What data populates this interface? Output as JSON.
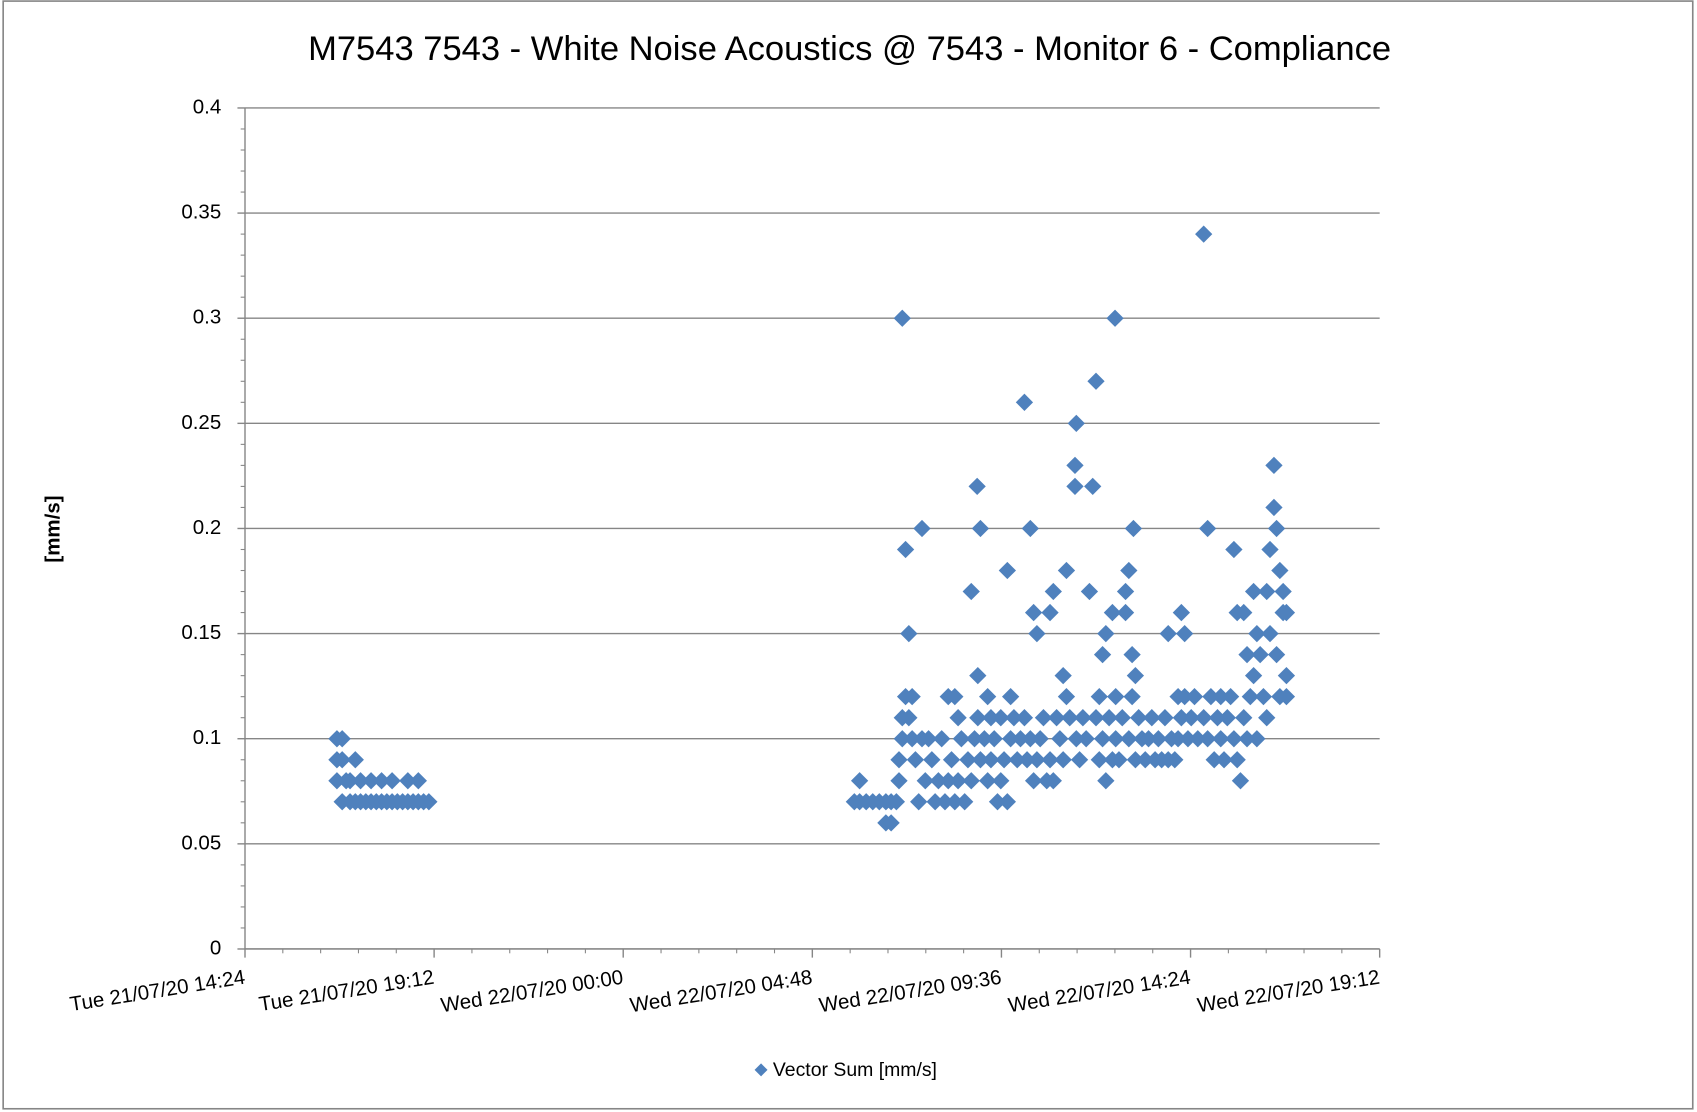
{
  "chart_data": {
    "type": "scatter",
    "title": "M7543 7543 - White Noise Acoustics @ 7543 - Monitor 6  - Compliance",
    "ylabel": "[mm/s]",
    "ylim": [
      0,
      0.4
    ],
    "yticks": [
      0,
      0.05,
      0.1,
      0.15,
      0.2,
      0.25,
      0.3,
      0.35,
      0.4
    ],
    "xlim": [
      "Tue 21/07/20 14:24",
      "Wed 22/07/20 19:12"
    ],
    "xticks": [
      "Tue 21/07/20 14:24",
      "Tue 21/07/20 19:12",
      "Wed 22/07/20 00:00",
      "Wed 22/07/20 04:48",
      "Wed 22/07/20 09:36",
      "Wed 22/07/20 14:24",
      "Wed 22/07/20 19:12"
    ],
    "grid": true,
    "legend": "bottom",
    "series": [
      {
        "name": "Vector Sum [mm/s]",
        "color": "#4f81bd",
        "x": [
          "Tue 21/07/20 16:44",
          "Tue 21/07/20 16:44",
          "Tue 21/07/20 16:44",
          "Tue 21/07/20 16:52",
          "Tue 21/07/20 16:52",
          "Tue 21/07/20 16:52",
          "Tue 21/07/20 16:58",
          "Tue 21/07/20 17:04",
          "Tue 21/07/20 17:04",
          "Tue 21/07/20 17:12",
          "Tue 21/07/20 17:12",
          "Tue 21/07/20 17:20",
          "Tue 21/07/20 17:20",
          "Tue 21/07/20 17:28",
          "Tue 21/07/20 17:36",
          "Tue 21/07/20 17:36",
          "Tue 21/07/20 17:44",
          "Tue 21/07/20 17:52",
          "Tue 21/07/20 17:52",
          "Tue 21/07/20 18:00",
          "Tue 21/07/20 18:08",
          "Tue 21/07/20 18:08",
          "Tue 21/07/20 18:16",
          "Tue 21/07/20 18:24",
          "Tue 21/07/20 18:32",
          "Tue 21/07/20 18:32",
          "Tue 21/07/20 18:40",
          "Tue 21/07/20 18:48",
          "Tue 21/07/20 18:48",
          "Tue 21/07/20 18:56",
          "Tue 21/07/20 19:04",
          "Wed 22/07/20 05:52",
          "Wed 22/07/20 06:00",
          "Wed 22/07/20 06:00",
          "Wed 22/07/20 06:10",
          "Wed 22/07/20 06:20",
          "Wed 22/07/20 06:30",
          "Wed 22/07/20 06:40",
          "Wed 22/07/20 06:40",
          "Wed 22/07/20 06:48",
          "Wed 22/07/20 06:48",
          "Wed 22/07/20 06:56",
          "Wed 22/07/20 07:00",
          "Wed 22/07/20 07:00",
          "Wed 22/07/20 07:05",
          "Wed 22/07/20 07:05",
          "Wed 22/07/20 07:05",
          "Wed 22/07/20 07:10",
          "Wed 22/07/20 07:10",
          "Wed 22/07/20 07:15",
          "Wed 22/07/20 07:15",
          "Wed 22/07/20 07:20",
          "Wed 22/07/20 07:20",
          "Wed 22/07/20 07:25",
          "Wed 22/07/20 07:30",
          "Wed 22/07/20 07:35",
          "Wed 22/07/20 07:35",
          "Wed 22/07/20 07:40",
          "Wed 22/07/20 07:45",
          "Wed 22/07/20 07:50",
          "Wed 22/07/20 07:55",
          "Wed 22/07/20 08:00",
          "Wed 22/07/20 08:05",
          "Wed 22/07/20 08:10",
          "Wed 22/07/20 08:15",
          "Wed 22/07/20 08:15",
          "Wed 22/07/20 08:20",
          "Wed 22/07/20 08:25",
          "Wed 22/07/20 08:25",
          "Wed 22/07/20 08:30",
          "Wed 22/07/20 08:30",
          "Wed 22/07/20 08:35",
          "Wed 22/07/20 08:40",
          "Wed 22/07/20 08:45",
          "Wed 22/07/20 08:50",
          "Wed 22/07/20 08:50",
          "Wed 22/07/20 08:55",
          "Wed 22/07/20 08:59",
          "Wed 22/07/20 09:00",
          "Wed 22/07/20 09:00",
          "Wed 22/07/20 09:04",
          "Wed 22/07/20 09:04",
          "Wed 22/07/20 09:10",
          "Wed 22/07/20 09:15",
          "Wed 22/07/20 09:15",
          "Wed 22/07/20 09:20",
          "Wed 22/07/20 09:20",
          "Wed 22/07/20 09:25",
          "Wed 22/07/20 09:30",
          "Wed 22/07/20 09:35",
          "Wed 22/07/20 09:35",
          "Wed 22/07/20 09:40",
          "Wed 22/07/20 09:45",
          "Wed 22/07/20 09:45",
          "Wed 22/07/20 09:50",
          "Wed 22/07/20 09:50",
          "Wed 22/07/20 09:55",
          "Wed 22/07/20 10:00",
          "Wed 22/07/20 10:05",
          "Wed 22/07/20 10:11",
          "Wed 22/07/20 10:11",
          "Wed 22/07/20 10:15",
          "Wed 22/07/20 10:20",
          "Wed 22/07/20 10:20",
          "Wed 22/07/20 10:25",
          "Wed 22/07/20 10:25",
          "Wed 22/07/20 10:30",
          "Wed 22/07/20 10:30",
          "Wed 22/07/20 10:35",
          "Wed 22/07/20 10:40",
          "Wed 22/07/20 10:45",
          "Wed 22/07/20 10:50",
          "Wed 22/07/20 10:50",
          "Wed 22/07/20 10:55",
          "Wed 22/07/20 10:55",
          "Wed 22/07/20 11:00",
          "Wed 22/07/20 11:05",
          "Wed 22/07/20 11:10",
          "Wed 22/07/20 11:10",
          "Wed 22/07/20 11:15",
          "Wed 22/07/20 11:15",
          "Wed 22/07/20 11:20",
          "Wed 22/07/20 11:28",
          "Wed 22/07/20 11:28",
          "Wed 22/07/20 11:30",
          "Wed 22/07/20 11:30",
          "Wed 22/07/20 11:35",
          "Wed 22/07/20 11:40",
          "Wed 22/07/20 11:45",
          "Wed 22/07/20 11:50",
          "Wed 22/07/20 11:55",
          "Wed 22/07/20 12:00",
          "Wed 22/07/20 12:00",
          "Wed 22/07/20 12:05",
          "Wed 22/07/20 12:05",
          "Wed 22/07/20 12:10",
          "Wed 22/07/20 12:10",
          "Wed 22/07/20 12:15",
          "Wed 22/07/20 12:15",
          "Wed 22/07/20 12:20",
          "Wed 22/07/20 12:25",
          "Wed 22/07/20 12:25",
          "Wed 22/07/20 12:29",
          "Wed 22/07/20 12:30",
          "Wed 22/07/20 12:30",
          "Wed 22/07/20 12:35",
          "Wed 22/07/20 12:40",
          "Wed 22/07/20 12:45",
          "Wed 22/07/20 12:45",
          "Wed 22/07/20 12:50",
          "Wed 22/07/20 12:50",
          "Wed 22/07/20 12:55",
          "Wed 22/07/20 12:55",
          "Wed 22/07/20 12:57",
          "Wed 22/07/20 13:00",
          "Wed 22/07/20 13:00",
          "Wed 22/07/20 13:05",
          "Wed 22/07/20 13:10",
          "Wed 22/07/20 13:15",
          "Wed 22/07/20 13:20",
          "Wed 22/07/20 13:25",
          "Wed 22/07/20 13:30",
          "Wed 22/07/20 13:35",
          "Wed 22/07/20 13:40",
          "Wed 22/07/20 13:45",
          "Wed 22/07/20 13:50",
          "Wed 22/07/20 13:50",
          "Wed 22/07/20 13:55",
          "Wed 22/07/20 14:00",
          "Wed 22/07/20 14:05",
          "Wed 22/07/20 14:05",
          "Wed 22/07/20 14:10",
          "Wed 22/07/20 14:10",
          "Wed 22/07/20 14:15",
          "Wed 22/07/20 14:15",
          "Wed 22/07/20 14:20",
          "Wed 22/07/20 14:25",
          "Wed 22/07/20 14:30",
          "Wed 22/07/20 14:35",
          "Wed 22/07/20 14:44",
          "Wed 22/07/20 14:44",
          "Wed 22/07/20 14:50",
          "Wed 22/07/20 14:50",
          "Wed 22/07/20 14:55",
          "Wed 22/07/20 15:00",
          "Wed 22/07/20 15:05",
          "Wed 22/07/20 15:10",
          "Wed 22/07/20 15:10",
          "Wed 22/07/20 15:15",
          "Wed 22/07/20 15:20",
          "Wed 22/07/20 15:25",
          "Wed 22/07/20 15:30",
          "Wed 22/07/20 15:30",
          "Wed 22/07/20 15:35",
          "Wed 22/07/20 15:35",
          "Wed 22/07/20 15:40",
          "Wed 22/07/20 15:45",
          "Wed 22/07/20 15:45",
          "Wed 22/07/20 15:50",
          "Wed 22/07/20 15:50",
          "Wed 22/07/20 15:55",
          "Wed 22/07/20 16:00",
          "Wed 22/07/20 16:00",
          "Wed 22/07/20 16:05",
          "Wed 22/07/20 16:05",
          "Wed 22/07/20 16:10",
          "Wed 22/07/20 16:15",
          "Wed 22/07/20 16:20",
          "Wed 22/07/20 16:20",
          "Wed 22/07/20 16:25",
          "Wed 22/07/20 16:25",
          "Wed 22/07/20 16:31",
          "Wed 22/07/20 16:31",
          "Wed 22/07/20 16:35",
          "Wed 22/07/20 16:35",
          "Wed 22/07/20 16:40",
          "Wed 22/07/20 16:40",
          "Wed 22/07/20 16:45",
          "Wed 22/07/20 16:45",
          "Wed 22/07/20 16:50",
          "Wed 22/07/20 16:50",
          "Wed 22/07/20 16:50"
        ],
        "values": [
          0.1,
          0.09,
          0.08,
          0.1,
          0.09,
          0.07,
          0.08,
          0.07,
          0.08,
          0.07,
          0.09,
          0.07,
          0.08,
          0.07,
          0.07,
          0.08,
          0.07,
          0.07,
          0.08,
          0.07,
          0.07,
          0.08,
          0.07,
          0.07,
          0.07,
          0.08,
          0.07,
          0.07,
          0.08,
          0.07,
          0.07,
          0.07,
          0.08,
          0.07,
          0.07,
          0.07,
          0.07,
          0.06,
          0.07,
          0.06,
          0.07,
          0.07,
          0.08,
          0.09,
          0.3,
          0.1,
          0.11,
          0.19,
          0.12,
          0.15,
          0.11,
          0.12,
          0.1,
          0.09,
          0.07,
          0.2,
          0.1,
          0.08,
          0.1,
          0.09,
          0.07,
          0.08,
          0.1,
          0.07,
          0.12,
          0.08,
          0.09,
          0.12,
          0.07,
          0.11,
          0.08,
          0.1,
          0.07,
          0.09,
          0.17,
          0.08,
          0.1,
          0.22,
          0.13,
          0.11,
          0.2,
          0.09,
          0.1,
          0.12,
          0.08,
          0.11,
          0.09,
          0.1,
          0.07,
          0.11,
          0.08,
          0.09,
          0.18,
          0.07,
          0.12,
          0.1,
          0.11,
          0.09,
          0.1,
          0.26,
          0.11,
          0.09,
          0.2,
          0.1,
          0.16,
          0.08,
          0.15,
          0.09,
          0.1,
          0.11,
          0.08,
          0.16,
          0.09,
          0.17,
          0.08,
          0.11,
          0.1,
          0.13,
          0.09,
          0.18,
          0.12,
          0.11,
          0.23,
          0.22,
          0.25,
          0.1,
          0.09,
          0.11,
          0.1,
          0.17,
          0.22,
          0.27,
          0.11,
          0.12,
          0.09,
          0.14,
          0.1,
          0.15,
          0.08,
          0.11,
          0.16,
          0.09,
          0.3,
          0.12,
          0.1,
          0.09,
          0.11,
          0.17,
          0.16,
          0.18,
          0.1,
          0.14,
          0.12,
          0.2,
          0.13,
          0.09,
          0.11,
          0.1,
          0.09,
          0.1,
          0.11,
          0.09,
          0.1,
          0.09,
          0.11,
          0.15,
          0.09,
          0.1,
          0.09,
          0.12,
          0.1,
          0.16,
          0.11,
          0.15,
          0.12,
          0.1,
          0.11,
          0.12,
          0.1,
          0.34,
          0.11,
          0.2,
          0.1,
          0.12,
          0.09,
          0.11,
          0.12,
          0.1,
          0.09,
          0.11,
          0.12,
          0.19,
          0.1,
          0.16,
          0.09,
          0.08,
          0.16,
          0.11,
          0.14,
          0.1,
          0.12,
          0.17,
          0.13,
          0.15,
          0.1,
          0.14,
          0.12,
          0.17,
          0.11,
          0.19,
          0.15,
          0.23,
          0.21,
          0.2,
          0.14,
          0.18,
          0.12,
          0.17,
          0.16,
          0.13,
          0.12,
          0.16
        ]
      }
    ]
  }
}
